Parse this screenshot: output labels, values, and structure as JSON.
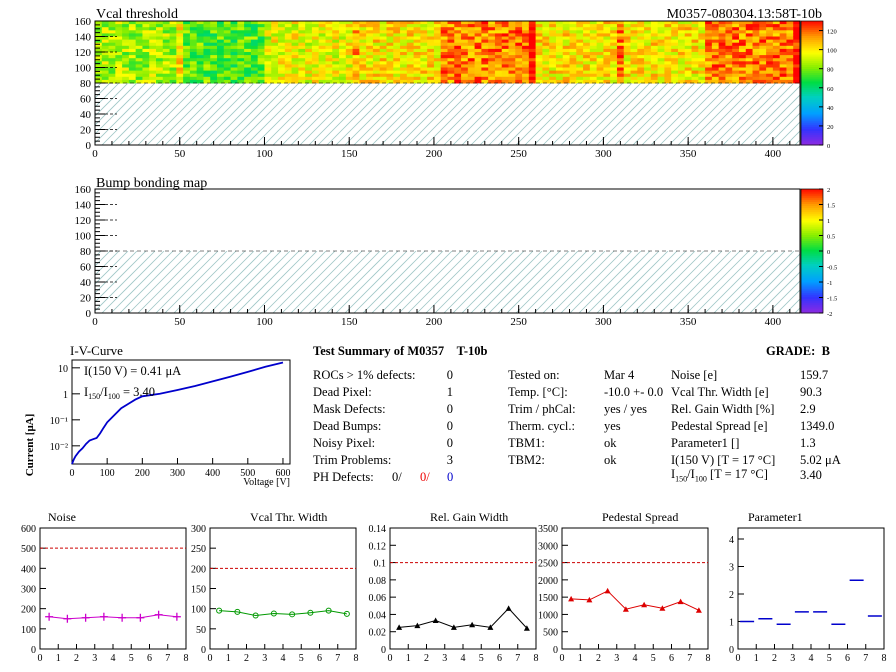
{
  "header": {
    "title": "Vcal threshold",
    "module_id": "M0357-080304.13:58T-10b"
  },
  "map_x_ticks": [
    "0",
    "50",
    "100",
    "150",
    "200",
    "250",
    "300",
    "350",
    "400"
  ],
  "map_y_ticks": [
    "0",
    "20",
    "40",
    "60",
    "80",
    "100",
    "120",
    "140",
    "160"
  ],
  "vcal_map": {
    "title": "Vcal threshold",
    "palette": "value color",
    "palette_ticks": [
      "120",
      "100",
      "80",
      "60",
      "40",
      "20",
      "0"
    ],
    "hatch_note": "lower half hatched (no data)"
  },
  "bump_map": {
    "title": "Bump bonding map",
    "palette_ticks": [
      "2",
      "1.5",
      "1",
      "0.5",
      "0",
      "-0.5",
      "-1",
      "-1.5",
      "-2"
    ]
  },
  "iv_curve": {
    "title": "I-V-Curve",
    "ylabel": "Current [μA]",
    "xlabel": "Voltage [V]",
    "x_ticks": [
      "0",
      "100",
      "200",
      "300",
      "400",
      "500",
      "600"
    ],
    "y_ticks": [
      "10",
      "1",
      "10⁻¹",
      "10⁻²"
    ],
    "annot1": "I(150 V) = 0.41 μA",
    "annot2_pre": "I",
    "annot2_sub1": "150",
    "annot2_mid": "/I",
    "annot2_sub2": "100",
    "annot2_post": " = 3.40"
  },
  "summary": {
    "title": "Test Summary of M0357",
    "tag": "T-10b",
    "grade_label": "GRADE:",
    "grade": "B",
    "left": [
      {
        "label": "ROCs > 1% defects:",
        "value": "0"
      },
      {
        "label": "Dead Pixel:",
        "value": "1"
      },
      {
        "label": "Mask Defects:",
        "value": "0"
      },
      {
        "label": "Dead Bumps:",
        "value": "0"
      },
      {
        "label": "Noisy Pixel:",
        "value": "0"
      },
      {
        "label": "Trim Problems:",
        "value": "3"
      }
    ],
    "ph_label": "PH Defects:",
    "ph_v1": "0/",
    "ph_v2": "0/",
    "ph_v3": "0",
    "middle": [
      {
        "label": "Tested on:",
        "value": "Mar 4"
      },
      {
        "label": "Temp. [°C]:",
        "value": "-10.0 +- 0.0"
      },
      {
        "label": "Trim / phCal:",
        "value": "yes / yes"
      },
      {
        "label": "Therm. cycl.:",
        "value": "yes"
      },
      {
        "label": "TBM1:",
        "value": "ok"
      },
      {
        "label": "TBM2:",
        "value": "ok"
      }
    ],
    "right": [
      {
        "label": "Noise [e]",
        "value": "159.7"
      },
      {
        "label": "Vcal Thr. Width [e]",
        "value": "90.3"
      },
      {
        "label": "Rel. Gain Width [%]",
        "value": "2.9"
      },
      {
        "label": "Pedestal Spread [e]",
        "value": "1349.0"
      },
      {
        "label": "Parameter1 []",
        "value": "1.3"
      },
      {
        "label": "I(150 V) [T = 17 °C]",
        "value": "5.02 μA"
      }
    ],
    "ratio_pre": "I",
    "ratio_sub1": "150",
    "ratio_mid": "/I",
    "ratio_sub2": "100",
    "ratio_post": "  [T = 17 °C]",
    "ratio_value": "3.40"
  },
  "chart_data": [
    {
      "type": "heatmap",
      "title": "Vcal threshold",
      "xlim": [
        0,
        416
      ],
      "ylim": [
        0,
        160
      ],
      "zlim": [
        0,
        130
      ],
      "rocs_filled": 8,
      "roc_mean_levels": [
        85,
        75,
        95,
        100,
        115,
        100,
        100,
        115
      ]
    },
    {
      "type": "heatmap",
      "title": "Bump bonding map",
      "xlim": [
        0,
        416
      ],
      "ylim": [
        0,
        160
      ],
      "zlim": [
        -2,
        2
      ]
    },
    {
      "type": "line",
      "title": "I-V-Curve",
      "xlabel": "Voltage [V]",
      "ylabel": "Current [μA]",
      "yscale": "log",
      "xlim": [
        0,
        620
      ],
      "ylim": [
        0.002,
        20
      ],
      "x": [
        0,
        5,
        10,
        20,
        30,
        40,
        50,
        60,
        70,
        80,
        90,
        100,
        120,
        140,
        160,
        180,
        200,
        250,
        300,
        350,
        400,
        450,
        500,
        550,
        600
      ],
      "y": [
        0.002,
        0.003,
        0.004,
        0.006,
        0.008,
        0.012,
        0.016,
        0.018,
        0.02,
        0.03,
        0.05,
        0.08,
        0.15,
        0.28,
        0.41,
        0.6,
        0.8,
        1.0,
        1.4,
        2.0,
        3.0,
        4.5,
        7.0,
        11.0,
        16.0
      ],
      "series_color": "#0000cc"
    },
    {
      "type": "scatter",
      "title": "Noise",
      "xlim": [
        0,
        8
      ],
      "ylim": [
        0,
        600
      ],
      "y_ticks": [
        0,
        100,
        200,
        300,
        400,
        500,
        600
      ],
      "threshold": 500,
      "color": "#cc00cc",
      "x": [
        0.5,
        1.5,
        2.5,
        3.5,
        4.5,
        5.5,
        6.5,
        7.5
      ],
      "values": [
        160,
        150,
        155,
        160,
        155,
        155,
        170,
        160
      ],
      "marker": "cross"
    },
    {
      "type": "line",
      "title": "Vcal Thr. Width",
      "xlim": [
        0,
        8
      ],
      "ylim": [
        0,
        300
      ],
      "y_ticks": [
        0,
        50,
        100,
        150,
        200,
        250,
        300
      ],
      "threshold": 200,
      "color": "#009900",
      "x": [
        0.5,
        1.5,
        2.5,
        3.5,
        4.5,
        5.5,
        6.5,
        7.5
      ],
      "values": [
        95,
        92,
        83,
        88,
        86,
        90,
        95,
        87
      ],
      "marker": "circle"
    },
    {
      "type": "line",
      "title": "Rel. Gain Width",
      "xlim": [
        0,
        8
      ],
      "ylim": [
        0,
        0.14
      ],
      "y_ticks": [
        0,
        0.02,
        0.04,
        0.06,
        0.08,
        0.1,
        0.12,
        0.14
      ],
      "threshold": 0.1,
      "color": "#000000",
      "x": [
        0.5,
        1.5,
        2.5,
        3.5,
        4.5,
        5.5,
        6.5,
        7.5
      ],
      "values": [
        0.025,
        0.027,
        0.033,
        0.025,
        0.028,
        0.025,
        0.047,
        0.024
      ],
      "marker": "triangle"
    },
    {
      "type": "line",
      "title": "Pedestal Spread",
      "xlim": [
        0,
        8
      ],
      "ylim": [
        0,
        3500
      ],
      "y_ticks": [
        0,
        500,
        1000,
        1500,
        2000,
        2500,
        3000,
        3500
      ],
      "threshold": 2500,
      "color": "#dd0000",
      "x": [
        0.5,
        1.5,
        2.5,
        3.5,
        4.5,
        5.5,
        6.5,
        7.5
      ],
      "values": [
        1450,
        1420,
        1680,
        1150,
        1280,
        1180,
        1370,
        1120
      ],
      "marker": "triangle"
    },
    {
      "type": "scatter",
      "title": "Parameter1",
      "xlim": [
        0,
        8
      ],
      "ylim": [
        0,
        4.4
      ],
      "y_ticks": [
        0,
        1,
        2,
        3,
        4
      ],
      "threshold": null,
      "color": "#0000cc",
      "x": [
        0.5,
        1.5,
        2.5,
        3.5,
        4.5,
        5.5,
        6.5,
        7.5
      ],
      "values": [
        1.0,
        1.1,
        0.9,
        1.35,
        1.35,
        0.9,
        2.5,
        1.2
      ],
      "marker": "hbar"
    }
  ]
}
